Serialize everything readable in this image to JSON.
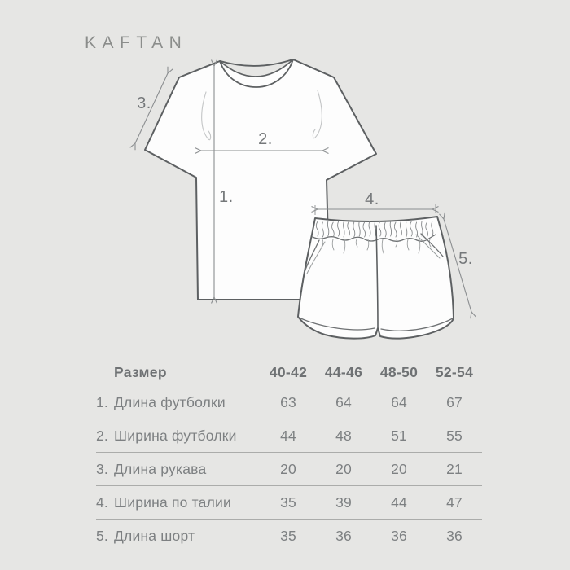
{
  "brand": {
    "name": "KAFTAN"
  },
  "colors": {
    "background": "#e6e6e4",
    "garment_fill": "#fdfdfd",
    "garment_outline": "#5d6062",
    "detail_line": "#85888a",
    "dimension_line": "#8b8e90",
    "table_text": "#7d8082",
    "table_header_text": "#6f7274",
    "divider": "#abacaa"
  },
  "drawing": {
    "tshirt_label": "t-shirt technical sketch",
    "shorts_label": "shorts technical sketch",
    "dims": {
      "d1": "1.",
      "d2": "2.",
      "d3": "3.",
      "d4": "4.",
      "d5": "5."
    }
  },
  "table": {
    "header": {
      "label": "Размер",
      "sizes": [
        "40-42",
        "44-46",
        "48-50",
        "52-54"
      ]
    },
    "rows": [
      {
        "num": "1.",
        "label": "Длина футболки",
        "values": [
          "63",
          "64",
          "64",
          "67"
        ]
      },
      {
        "num": "2.",
        "label": "Ширина футболки",
        "values": [
          "44",
          "48",
          "51",
          "55"
        ]
      },
      {
        "num": "3.",
        "label": "Длина рукава",
        "values": [
          "20",
          "20",
          "20",
          "21"
        ]
      },
      {
        "num": "4.",
        "label": "Ширина по талии",
        "values": [
          "35",
          "39",
          "44",
          "47"
        ]
      },
      {
        "num": "5.",
        "label": "Длина шорт",
        "values": [
          "35",
          "36",
          "36",
          "36"
        ]
      }
    ]
  }
}
